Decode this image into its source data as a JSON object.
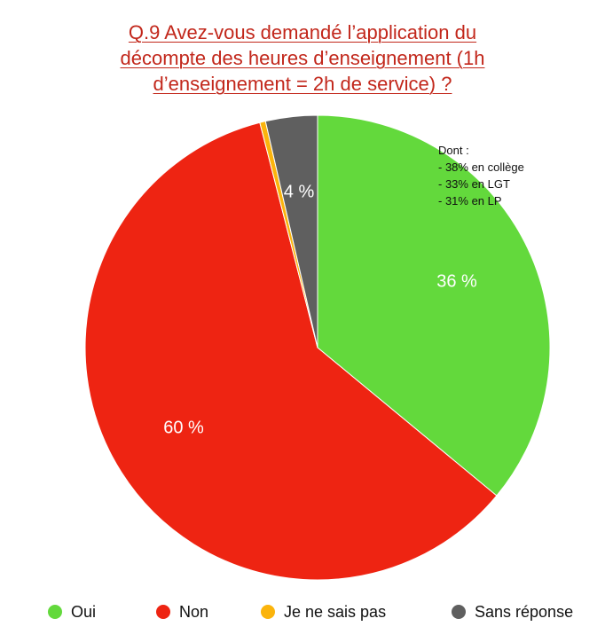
{
  "chart_data": {
    "type": "pie",
    "title_lines": [
      "Q.9 Avez-vous demandé l’application du",
      "décompte des heures d’enseignement (1h",
      "d’enseignement = 2h de service) ?"
    ],
    "slices": [
      {
        "name": "Oui",
        "value": 36,
        "label": "36 %",
        "color": "#63d93c"
      },
      {
        "name": "Non",
        "value": 60,
        "label": "60 %",
        "color": "#ee2412"
      },
      {
        "name": "Je ne sais pas",
        "value": 0.4,
        "label": "",
        "color": "#fbb40c"
      },
      {
        "name": "Sans réponse",
        "value": 3.6,
        "label": "4 %",
        "color": "#5f5f5f"
      }
    ],
    "annotation_lines": [
      "Dont :",
      "- 38% en collège",
      "- 33% en LGT",
      "- 31% en LP"
    ],
    "legend_position": "bottom"
  }
}
